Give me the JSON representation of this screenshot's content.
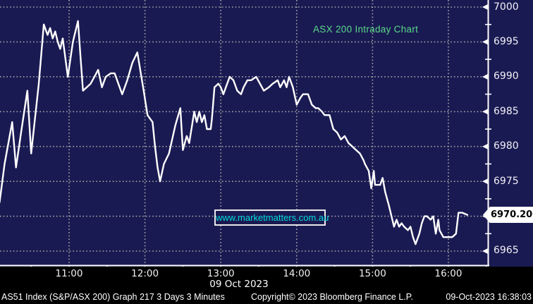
{
  "chart": {
    "title": "ASX 200 Intraday Chart",
    "watermark": "www.marketmatters.com.au",
    "last_price": "6970.200",
    "date_label": "09 Oct 2023"
  },
  "status_bar": {
    "left": "AS51 Index (S&P/ASX 200) Graph 217 3 Days 3 Minutes",
    "copyright": "Copyright© 2023 Bloomberg Finance L.P.",
    "datetime": "09-Oct-2023 16:38:03"
  },
  "colors": {
    "plot_background": "#1a1a53",
    "frame_background": "#000000",
    "grid": "#a5a5a5",
    "axis": "#ffffff",
    "price_line": "#ffffff",
    "title_green": "#58d987",
    "watermark_cyan": "#00dcdc",
    "label_text": "#f0f0f5",
    "tag_background": "#ffffff",
    "tag_text": "#000000"
  },
  "chart_data": {
    "type": "line",
    "title": "ASX 200 Intraday Chart",
    "xlabel": "09 Oct 2023",
    "ylabel": "",
    "x_ticks": [
      "11:00",
      "12:00",
      "13:00",
      "14:00",
      "15:00",
      "16:00"
    ],
    "x_minor_ticks": [
      "10:30",
      "11:30",
      "12:30",
      "13:30",
      "14:30",
      "15:30",
      "16:30"
    ],
    "y_ticks": [
      7000,
      6995,
      6990,
      6985,
      6980,
      6975,
      6970,
      6965
    ],
    "y_minor_ticks": [
      6997.5,
      6992.5,
      6987.5,
      6982.5,
      6977.5,
      6972.5,
      6967.5
    ],
    "ylim": [
      6963,
      7001
    ],
    "x_range": [
      "10:05",
      "16:31"
    ],
    "grid": "dotted",
    "legend_position": "none",
    "last_price": 6970.2,
    "series": [
      {
        "name": "AS51 Index",
        "points": [
          [
            "10:05",
            6972.0
          ],
          [
            "10:09",
            6977.5
          ],
          [
            "10:13",
            6981.5
          ],
          [
            "10:15",
            6983.5
          ],
          [
            "10:18",
            6977.0
          ],
          [
            "10:22",
            6982.0
          ],
          [
            "10:27",
            6988.0
          ],
          [
            "10:30",
            6979.0
          ],
          [
            "10:36",
            6989.0
          ],
          [
            "10:40",
            6997.5
          ],
          [
            "10:43",
            6996.0
          ],
          [
            "10:45",
            6997.0
          ],
          [
            "10:47",
            6995.5
          ],
          [
            "10:49",
            6996.5
          ],
          [
            "10:51",
            6995.0
          ],
          [
            "10:53",
            6994.0
          ],
          [
            "10:55",
            6995.5
          ],
          [
            "10:59",
            6990.0
          ],
          [
            "11:03",
            6995.0
          ],
          [
            "11:07",
            6998.0
          ],
          [
            "11:09",
            6993.0
          ],
          [
            "11:11",
            6988.0
          ],
          [
            "11:14",
            6988.5
          ],
          [
            "11:17",
            6989.0
          ],
          [
            "11:20",
            6990.0
          ],
          [
            "11:23",
            6991.0
          ],
          [
            "11:26",
            6988.5
          ],
          [
            "11:29",
            6990.0
          ],
          [
            "11:33",
            6990.5
          ],
          [
            "11:36",
            6990.5
          ],
          [
            "11:39",
            6989.0
          ],
          [
            "11:42",
            6987.5
          ],
          [
            "11:46",
            6989.5
          ],
          [
            "11:50",
            6992.0
          ],
          [
            "11:54",
            6993.5
          ],
          [
            "11:59",
            6988.0
          ],
          [
            "12:02",
            6984.5
          ],
          [
            "12:04",
            6984.0
          ],
          [
            "12:06",
            6983.5
          ],
          [
            "12:08",
            6980.0
          ],
          [
            "12:10",
            6977.0
          ],
          [
            "12:12",
            6975.0
          ],
          [
            "12:15",
            6977.5
          ],
          [
            "12:19",
            6979.0
          ],
          [
            "12:24",
            6983.0
          ],
          [
            "12:28",
            6985.5
          ],
          [
            "12:30",
            6979.5
          ],
          [
            "12:33",
            6981.5
          ],
          [
            "12:35",
            6980.5
          ],
          [
            "12:39",
            6985.0
          ],
          [
            "12:41",
            6983.5
          ],
          [
            "12:43",
            6985.0
          ],
          [
            "12:45",
            6983.5
          ],
          [
            "12:47",
            6984.5
          ],
          [
            "12:49",
            6982.5
          ],
          [
            "12:52",
            6982.5
          ],
          [
            "12:53",
            6984.0
          ],
          [
            "12:55",
            6988.5
          ],
          [
            "12:58",
            6989.0
          ],
          [
            "13:00",
            6988.5
          ],
          [
            "13:02",
            6987.5
          ],
          [
            "13:05",
            6989.0
          ],
          [
            "13:07",
            6990.0
          ],
          [
            "13:10",
            6989.5
          ],
          [
            "13:13",
            6988.0
          ],
          [
            "13:16",
            6987.5
          ],
          [
            "13:18",
            6988.5
          ],
          [
            "13:21",
            6989.5
          ],
          [
            "13:24",
            6989.5
          ],
          [
            "13:28",
            6990.0
          ],
          [
            "13:31",
            6989.0
          ],
          [
            "13:34",
            6988.0
          ],
          [
            "13:38",
            6988.5
          ],
          [
            "13:41",
            6989.0
          ],
          [
            "13:45",
            6989.5
          ],
          [
            "13:47",
            6988.5
          ],
          [
            "13:50",
            6989.5
          ],
          [
            "13:52",
            6988.5
          ],
          [
            "13:54",
            6990.0
          ],
          [
            "13:57",
            6988.5
          ],
          [
            "14:00",
            6986.0
          ],
          [
            "14:03",
            6987.0
          ],
          [
            "14:05",
            6987.5
          ],
          [
            "14:09",
            6987.5
          ],
          [
            "14:12",
            6986.0
          ],
          [
            "14:15",
            6985.5
          ],
          [
            "14:17",
            6985.5
          ],
          [
            "14:20",
            6985.0
          ],
          [
            "14:22",
            6984.5
          ],
          [
            "14:26",
            6984.5
          ],
          [
            "14:29",
            6982.5
          ],
          [
            "14:32",
            6982.0
          ],
          [
            "14:35",
            6981.0
          ],
          [
            "14:38",
            6981.5
          ],
          [
            "14:41",
            6980.5
          ],
          [
            "14:44",
            6980.0
          ],
          [
            "14:47",
            6979.5
          ],
          [
            "14:50",
            6979.0
          ],
          [
            "14:53",
            6978.0
          ],
          [
            "14:54",
            6977.5
          ],
          [
            "14:57",
            6976.5
          ],
          [
            "14:59",
            6974.0
          ],
          [
            "15:01",
            6976.5
          ],
          [
            "15:02",
            6974.5
          ],
          [
            "15:04",
            6974.5
          ],
          [
            "15:06",
            6974.5
          ],
          [
            "15:08",
            6975.5
          ],
          [
            "15:10",
            6973.5
          ],
          [
            "15:13",
            6971.5
          ],
          [
            "15:15",
            6970.0
          ],
          [
            "15:17",
            6968.5
          ],
          [
            "15:19",
            6969.5
          ],
          [
            "15:21",
            6968.5
          ],
          [
            "15:23",
            6969.0
          ],
          [
            "15:25",
            6968.5
          ],
          [
            "15:28",
            6968.0
          ],
          [
            "15:30",
            6968.5
          ],
          [
            "15:32",
            6967.0
          ],
          [
            "15:34",
            6966.0
          ],
          [
            "15:37",
            6967.5
          ],
          [
            "15:39",
            6969.0
          ],
          [
            "15:41",
            6970.0
          ],
          [
            "15:43",
            6970.0
          ],
          [
            "15:46",
            6969.5
          ],
          [
            "15:48",
            6970.0
          ],
          [
            "15:50",
            6967.5
          ],
          [
            "15:52",
            6969.5
          ],
          [
            "15:53",
            6968.0
          ],
          [
            "15:56",
            6967.0
          ],
          [
            "15:58",
            6967.0
          ],
          [
            "16:01",
            6967.0
          ],
          [
            "16:03",
            6967.0
          ],
          [
            "16:06",
            6967.5
          ],
          [
            "16:08",
            6970.5
          ],
          [
            "16:11",
            6970.5
          ],
          [
            "16:15",
            6970.2
          ]
        ]
      }
    ]
  }
}
